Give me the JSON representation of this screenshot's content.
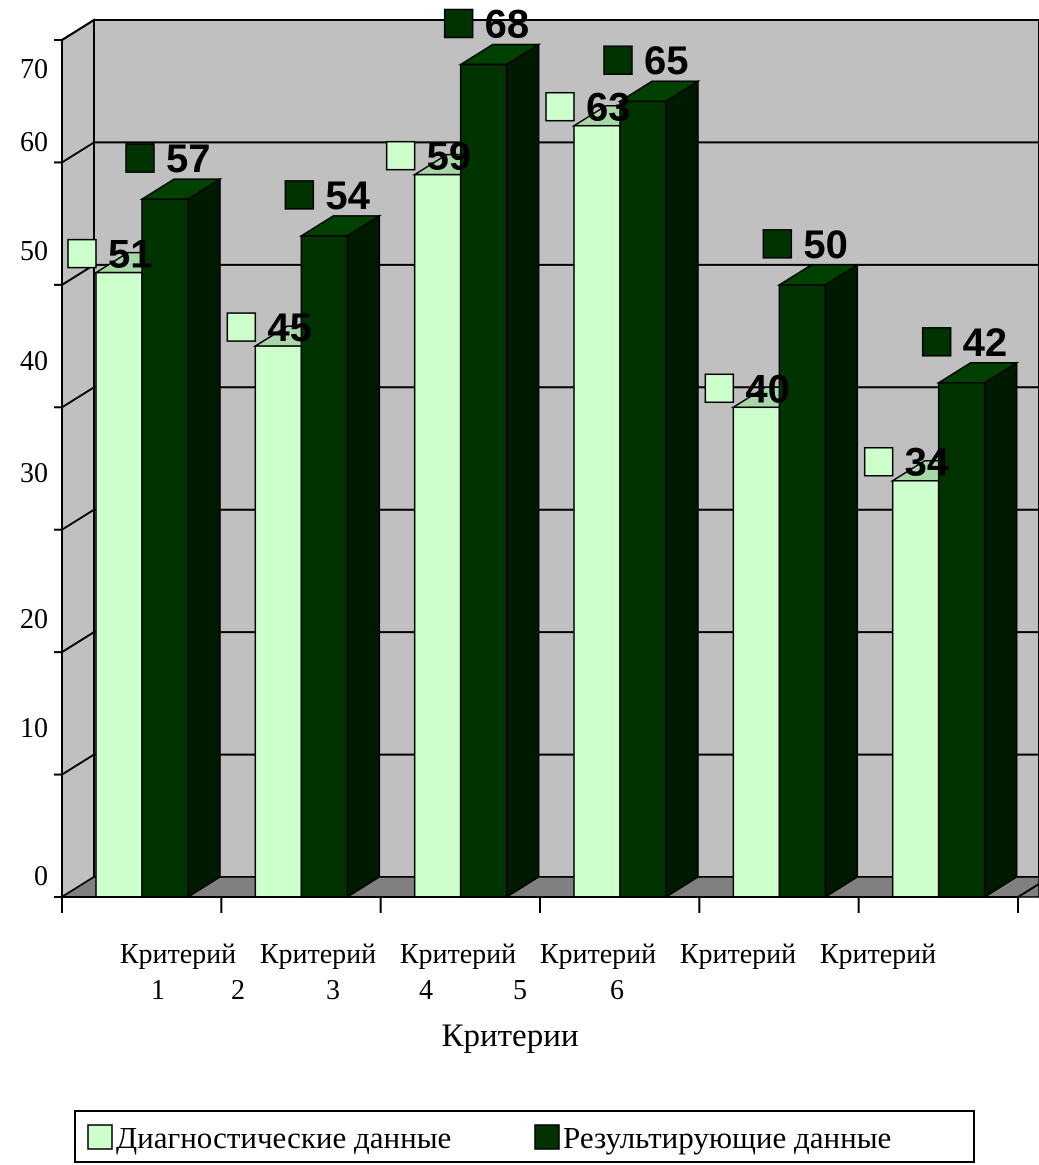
{
  "chart_data": {
    "type": "bar",
    "categories": [
      "Критерий 1",
      "Критерий 2",
      "Критерий 3",
      "Критерий 4",
      "Критерий 5",
      "Критерий 6"
    ],
    "category_label_rows": [
      [
        "Критерий",
        "Критерий",
        "Критерий",
        "Критерий",
        "Критерий",
        "Критерий"
      ],
      [
        "1",
        "2",
        "3",
        "4",
        "5",
        "6"
      ]
    ],
    "series": [
      {
        "name": "Диагностические данные",
        "values": [
          51,
          45,
          59,
          63,
          40,
          34
        ],
        "color": "#ccffcc"
      },
      {
        "name": "Результирующие данные",
        "values": [
          57,
          54,
          68,
          65,
          50,
          42
        ],
        "color": "#003300"
      }
    ],
    "xlabel": "Критерии",
    "ylabel": "",
    "ylim": [
      0,
      70
    ],
    "yticks": [
      0,
      10,
      20,
      30,
      40,
      50,
      60,
      70
    ],
    "grid": true,
    "three_d": true,
    "legend_position": "bottom",
    "data_labels": true,
    "wall_color": "#c0c0c0",
    "floor_color": "#808080"
  }
}
